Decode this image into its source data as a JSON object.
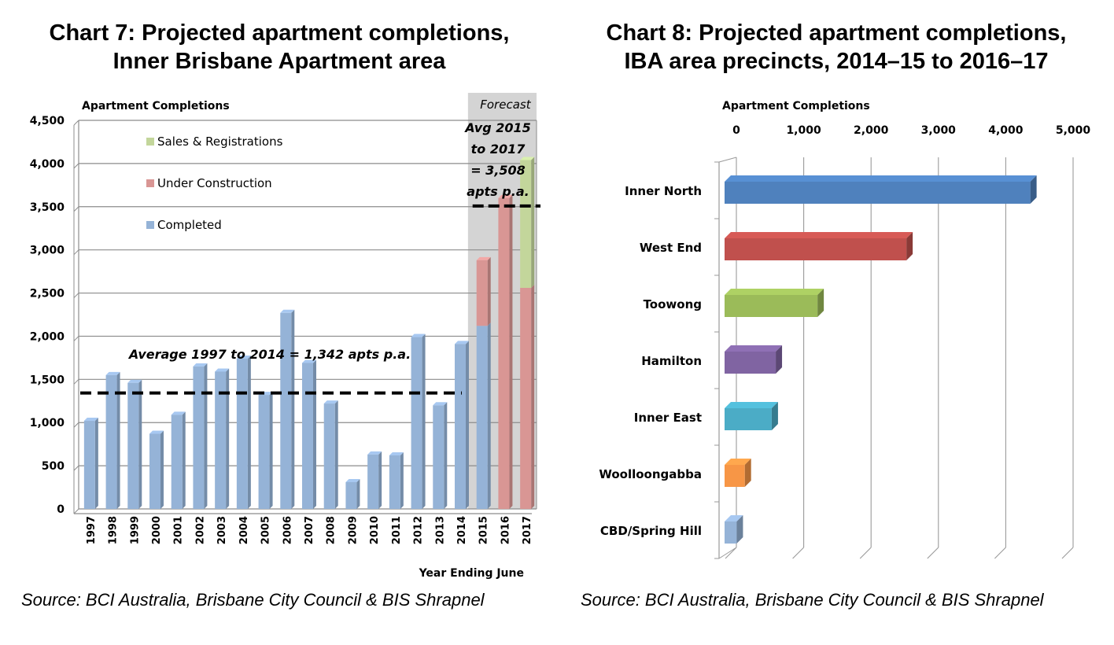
{
  "chart_data": [
    {
      "type": "bar",
      "title_line1": "Chart 7: Projected apartment completions,",
      "title_line2": "Inner Brisbane Apartment area",
      "ylabel": "Apartment Completions",
      "xlabel": "Year Ending June",
      "ylim": [
        0,
        4500
      ],
      "yticks": [
        0,
        500,
        1000,
        1500,
        2000,
        2500,
        3000,
        3500,
        4000,
        4500
      ],
      "ytick_labels": [
        "0",
        "500",
        "1,000",
        "1,500",
        "2,000",
        "2,500",
        "3,000",
        "3,500",
        "4,000",
        "4,500"
      ],
      "stacked": true,
      "grid": true,
      "legend_position": "top-left",
      "categories": [
        "1997",
        "1998",
        "1999",
        "2000",
        "2001",
        "2002",
        "2003",
        "2004",
        "2005",
        "2006",
        "2007",
        "2008",
        "2009",
        "2010",
        "2011",
        "2012",
        "2013",
        "2014",
        "2015",
        "2016",
        "2017"
      ],
      "series": [
        {
          "name": "Completed",
          "color": "#95b3d7",
          "values": [
            1020,
            1550,
            1460,
            870,
            1090,
            1650,
            1590,
            1740,
            1320,
            2270,
            1690,
            1220,
            310,
            630,
            620,
            1990,
            1200,
            1910,
            2120,
            0,
            0
          ]
        },
        {
          "name": "Under Construction",
          "color": "#d99694",
          "values": [
            0,
            0,
            0,
            0,
            0,
            0,
            0,
            0,
            0,
            0,
            0,
            0,
            0,
            0,
            0,
            0,
            0,
            0,
            760,
            3600,
            2560
          ]
        },
        {
          "name": "Sales & Registrations",
          "color": "#c3d69b",
          "values": [
            0,
            0,
            0,
            0,
            0,
            0,
            0,
            0,
            0,
            0,
            0,
            0,
            0,
            0,
            0,
            0,
            0,
            0,
            0,
            0,
            1480
          ]
        }
      ],
      "legend_order": [
        "Sales & Registrations",
        "Under Construction",
        "Completed"
      ],
      "forecast": {
        "label": "Forecast",
        "from": "2015",
        "to": "2017",
        "shade_color": "#d4d4d4"
      },
      "reference_lines": [
        {
          "value": 1342,
          "from": "1997",
          "to": "2014",
          "style": "dashed",
          "color": "#000000",
          "label": "Average 1997 to 2014 = 1,342 apts p.a."
        },
        {
          "value": 3508,
          "from": "2015",
          "to": "2017",
          "style": "dashed",
          "color": "#000000",
          "label_lines": [
            "Avg 2015",
            "to 2017",
            "= 3,508",
            "apts p.a."
          ]
        }
      ],
      "source": "Source: BCI Australia, Brisbane City Council & BIS Shrapnel"
    },
    {
      "type": "bar",
      "orientation": "horizontal",
      "title_line1": "Chart 8: Projected apartment completions,",
      "title_line2": "IBA area precincts, 2014–15 to 2016–17",
      "xlabel": "Apartment Completions",
      "xlim": [
        0,
        5000
      ],
      "xticks": [
        0,
        1000,
        2000,
        3000,
        4000,
        5000
      ],
      "xtick_labels": [
        "0",
        "1,000",
        "2,000",
        "3,000",
        "4,000",
        "5,000"
      ],
      "grid": true,
      "categories": [
        "Inner North",
        "West End",
        "Toowong",
        "Hamilton",
        "Inner East",
        "Woolloongabba",
        "CBD/Spring Hill"
      ],
      "values": [
        4540,
        2700,
        1380,
        760,
        700,
        300,
        180
      ],
      "colors": [
        "#4f81bd",
        "#c0504d",
        "#9bbb59",
        "#8064a2",
        "#4bacc6",
        "#f79646",
        "#95b3d7"
      ],
      "source": "Source: BCI Australia, Brisbane City Council & BIS Shrapnel"
    }
  ]
}
